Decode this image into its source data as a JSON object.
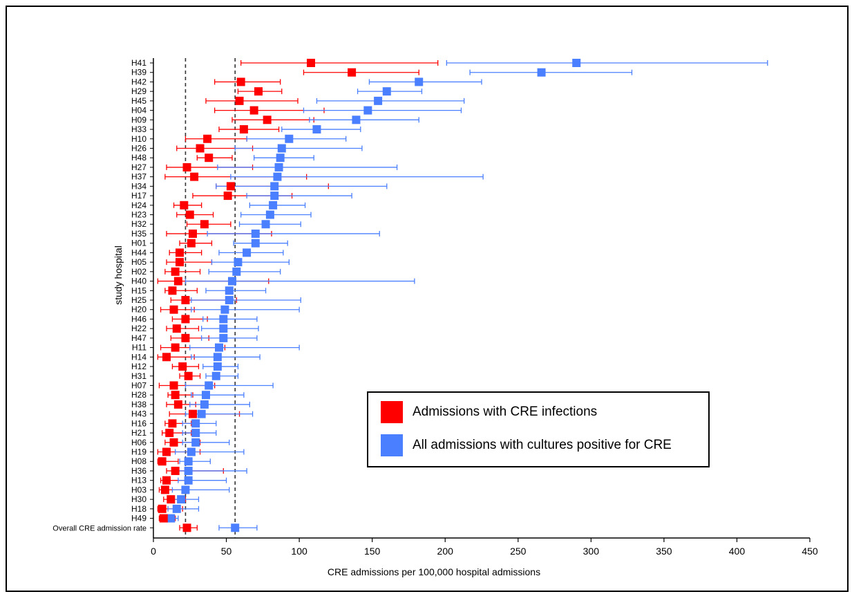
{
  "chart_data": {
    "type": "scatter",
    "subtype": "dot-plot-with-error-bars",
    "xlabel": "CRE admissions per 100,000 hospital admissions",
    "ylabel": "study hospital",
    "xlim": [
      0,
      450
    ],
    "xticks": [
      0,
      50,
      100,
      150,
      200,
      250,
      300,
      350,
      400,
      450
    ],
    "grid": false,
    "legend_position": "bottom-right",
    "reference_lines": [
      22,
      56
    ],
    "categories": [
      "H41",
      "H39",
      "H42",
      "H29",
      "H45",
      "H04",
      "H09",
      "H33",
      "H10",
      "H26",
      "H48",
      "H27",
      "H37",
      "H34",
      "H17",
      "H24",
      "H23",
      "H32",
      "H35",
      "H01",
      "H44",
      "H05",
      "H02",
      "H40",
      "H15",
      "H25",
      "H20",
      "H46",
      "H22",
      "H47",
      "H11",
      "H14",
      "H12",
      "H31",
      "H07",
      "H28",
      "H38",
      "H43",
      "H16",
      "H21",
      "H06",
      "H19",
      "H08",
      "H36",
      "H13",
      "H03",
      "H30",
      "H18",
      "H49",
      "Overall CRE admission rate"
    ],
    "series": [
      {
        "name": "Admissions with CRE infections",
        "color": "#ff0000",
        "values": [
          108,
          136,
          60,
          72,
          59,
          69,
          78,
          62,
          37,
          32,
          38,
          23,
          28,
          53,
          51,
          21,
          25,
          35,
          27,
          26,
          18,
          18,
          15,
          17,
          13,
          22,
          14,
          22,
          16,
          22,
          15,
          9,
          20,
          24,
          14,
          15,
          17,
          27,
          13,
          11,
          14,
          9,
          6,
          15,
          9,
          8,
          12,
          6,
          7,
          23
        ],
        "lower": [
          60,
          103,
          42,
          58,
          36,
          42,
          54,
          45,
          22,
          16,
          30,
          9,
          8,
          43,
          27,
          14,
          16,
          23,
          9,
          18,
          11,
          9,
          8,
          3,
          8,
          12,
          5,
          13,
          9,
          12,
          5,
          3,
          13,
          18,
          4,
          10,
          9,
          11,
          8,
          6,
          8,
          3,
          3,
          9,
          5,
          4,
          7,
          3,
          4,
          18
        ],
        "upper": [
          195,
          182,
          87,
          88,
          99,
          117,
          110,
          86,
          64,
          68,
          54,
          68,
          105,
          120,
          95,
          33,
          41,
          53,
          81,
          40,
          33,
          40,
          32,
          79,
          30,
          57,
          28,
          37,
          31,
          38,
          49,
          28,
          31,
          32,
          42,
          27,
          29,
          59,
          26,
          26,
          32,
          32,
          17,
          48,
          26,
          24,
          22,
          20,
          15,
          30
        ]
      },
      {
        "name": "All admissions with cultures positive for CRE",
        "color": "#4a7fff",
        "values": [
          290,
          266,
          182,
          160,
          154,
          147,
          139,
          112,
          93,
          88,
          87,
          86,
          85,
          83,
          83,
          82,
          80,
          77,
          70,
          70,
          64,
          58,
          57,
          54,
          52,
          52,
          49,
          48,
          48,
          48,
          45,
          44,
          44,
          43,
          38,
          36,
          35,
          33,
          29,
          29,
          29,
          26,
          24,
          24,
          24,
          22,
          19,
          16,
          12,
          56
        ],
        "lower": [
          201,
          217,
          148,
          140,
          112,
          103,
          107,
          88,
          64,
          56,
          69,
          44,
          53,
          43,
          64,
          66,
          60,
          59,
          37,
          55,
          45,
          40,
          38,
          22,
          36,
          26,
          26,
          34,
          33,
          33,
          25,
          26,
          34,
          36,
          22,
          26,
          25,
          22,
          20,
          20,
          20,
          15,
          18,
          17,
          17,
          13,
          12,
          10,
          9,
          45
        ],
        "upper": [
          421,
          328,
          225,
          184,
          213,
          211,
          182,
          142,
          132,
          143,
          110,
          167,
          226,
          160,
          136,
          104,
          108,
          101,
          155,
          92,
          89,
          93,
          87,
          179,
          77,
          101,
          100,
          71,
          72,
          71,
          100,
          73,
          58,
          58,
          82,
          62,
          66,
          68,
          43,
          43,
          52,
          62,
          39,
          64,
          50,
          52,
          31,
          31,
          17,
          71
        ]
      }
    ],
    "legend": [
      {
        "label": "Admissions with CRE infections",
        "color": "#ff0000"
      },
      {
        "label": "All admissions with cultures positive for CRE",
        "color": "#4a7fff"
      }
    ]
  }
}
